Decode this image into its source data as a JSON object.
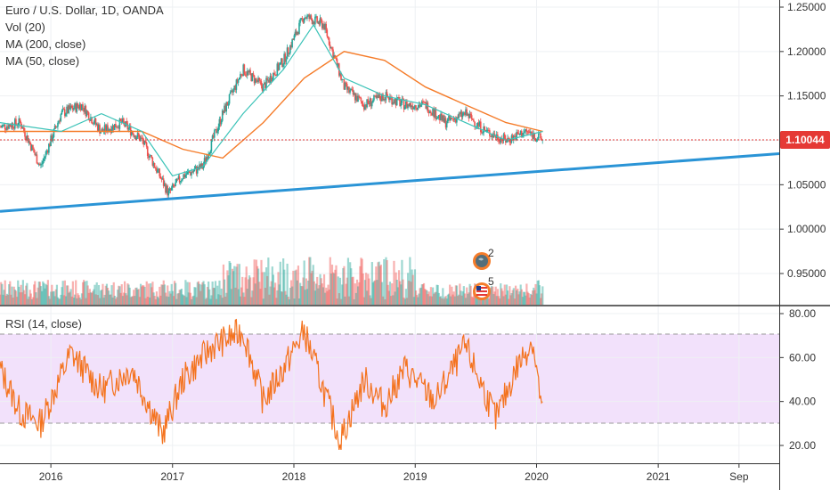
{
  "header": {
    "title": "Euro / U.S. Dollar, 1D, OANDA",
    "indicators": [
      "Vol (20)",
      "MA (200, close)",
      "MA (50, close)"
    ]
  },
  "rsi_label": "RSI (14, close)",
  "price_tag": "1.10044",
  "events": [
    {
      "icon": "dividend-globe-icon",
      "count": "2"
    },
    {
      "icon": "us-flag-event-icon",
      "count": "5"
    }
  ],
  "colors": {
    "ma200": "#f57c2a",
    "ma50": "#3cc3b8",
    "trendline": "#2a94d6",
    "price_line": "#e53935",
    "rsi_line": "#f4731f",
    "rsi_band": "#f2e1fb",
    "candle_up": "#26a69a",
    "candle_down": "#ef5350"
  },
  "chart_data": [
    {
      "type": "candlestick",
      "name": "Euro / U.S. Dollar, 1D, OANDA",
      "x_tick_labels": [
        "2016",
        "2017",
        "2018",
        "2019",
        "2020",
        "2021",
        "Sep"
      ],
      "y_tick_labels": [
        "1.25000",
        "1.20000",
        "1.15000",
        "1.10000",
        "1.05000",
        "1.00000",
        "0.95000"
      ],
      "ylim": [
        0.915,
        1.255
      ],
      "last_price": 1.10044,
      "price_path": [
        [
          "2015-08-01",
          1.115
        ],
        [
          "2015-10-01",
          1.12
        ],
        [
          "2015-12-01",
          1.07
        ],
        [
          "2016-02-01",
          1.13
        ],
        [
          "2016-04-01",
          1.14
        ],
        [
          "2016-06-01",
          1.11
        ],
        [
          "2016-08-01",
          1.12
        ],
        [
          "2016-10-01",
          1.1
        ],
        [
          "2016-12-20",
          1.04
        ],
        [
          "2017-02-01",
          1.06
        ],
        [
          "2017-04-01",
          1.07
        ],
        [
          "2017-06-01",
          1.13
        ],
        [
          "2017-08-01",
          1.18
        ],
        [
          "2017-10-01",
          1.16
        ],
        [
          "2017-12-01",
          1.19
        ],
        [
          "2018-02-01",
          1.24
        ],
        [
          "2018-04-01",
          1.23
        ],
        [
          "2018-06-01",
          1.16
        ],
        [
          "2018-08-01",
          1.14
        ],
        [
          "2018-10-01",
          1.15
        ],
        [
          "2018-12-01",
          1.14
        ],
        [
          "2019-02-01",
          1.14
        ],
        [
          "2019-04-01",
          1.12
        ],
        [
          "2019-06-01",
          1.13
        ],
        [
          "2019-08-01",
          1.11
        ],
        [
          "2019-10-01",
          1.1
        ],
        [
          "2019-12-01",
          1.11
        ],
        [
          "2020-01-20",
          1.10044
        ]
      ],
      "ma200_path": [
        [
          "2015-08-01",
          1.11
        ],
        [
          "2016-06-01",
          1.11
        ],
        [
          "2016-10-01",
          1.11
        ],
        [
          "2017-02-01",
          1.09
        ],
        [
          "2017-06-01",
          1.08
        ],
        [
          "2017-10-01",
          1.12
        ],
        [
          "2018-02-01",
          1.17
        ],
        [
          "2018-06-01",
          1.2
        ],
        [
          "2018-10-01",
          1.19
        ],
        [
          "2019-02-01",
          1.16
        ],
        [
          "2019-06-01",
          1.14
        ],
        [
          "2019-10-01",
          1.12
        ],
        [
          "2020-01-20",
          1.11
        ]
      ],
      "ma50_path": [
        [
          "2015-08-01",
          1.12
        ],
        [
          "2016-02-01",
          1.11
        ],
        [
          "2016-06-01",
          1.13
        ],
        [
          "2016-10-01",
          1.11
        ],
        [
          "2017-01-01",
          1.06
        ],
        [
          "2017-04-01",
          1.07
        ],
        [
          "2017-08-01",
          1.13
        ],
        [
          "2017-12-01",
          1.18
        ],
        [
          "2018-03-01",
          1.23
        ],
        [
          "2018-06-01",
          1.17
        ],
        [
          "2018-10-01",
          1.15
        ],
        [
          "2019-02-01",
          1.14
        ],
        [
          "2019-06-01",
          1.12
        ],
        [
          "2019-10-01",
          1.1
        ],
        [
          "2020-01-20",
          1.11
        ]
      ],
      "trendline": [
        [
          "2015-08-01",
          1.02
        ],
        [
          "2021-12-31",
          1.085
        ]
      ]
    },
    {
      "type": "line",
      "name": "RSI (14, close)",
      "y_tick_labels": [
        "80.00",
        "60.00",
        "40.00",
        "20.00"
      ],
      "ylim": [
        15,
        80
      ],
      "band": [
        30,
        70
      ],
      "x_tick_labels": [
        "2016",
        "2017",
        "2018",
        "2019",
        "2020",
        "2021",
        "Sep"
      ],
      "rsi_path": [
        [
          "2015-08-01",
          55
        ],
        [
          "2015-10-01",
          35
        ],
        [
          "2015-12-01",
          30
        ],
        [
          "2016-03-01",
          62
        ],
        [
          "2016-06-01",
          45
        ],
        [
          "2016-09-01",
          55
        ],
        [
          "2016-12-01",
          25
        ],
        [
          "2017-02-01",
          50
        ],
        [
          "2017-05-01",
          65
        ],
        [
          "2017-08-01",
          72
        ],
        [
          "2017-10-01",
          40
        ],
        [
          "2017-12-01",
          55
        ],
        [
          "2018-02-01",
          72
        ],
        [
          "2018-04-01",
          45
        ],
        [
          "2018-05-20",
          22
        ],
        [
          "2018-08-01",
          50
        ],
        [
          "2018-10-01",
          38
        ],
        [
          "2018-12-01",
          55
        ],
        [
          "2019-03-01",
          40
        ],
        [
          "2019-06-01",
          65
        ],
        [
          "2019-09-01",
          32
        ],
        [
          "2019-11-01",
          55
        ],
        [
          "2019-12-20",
          68
        ],
        [
          "2020-01-20",
          33
        ]
      ]
    }
  ]
}
